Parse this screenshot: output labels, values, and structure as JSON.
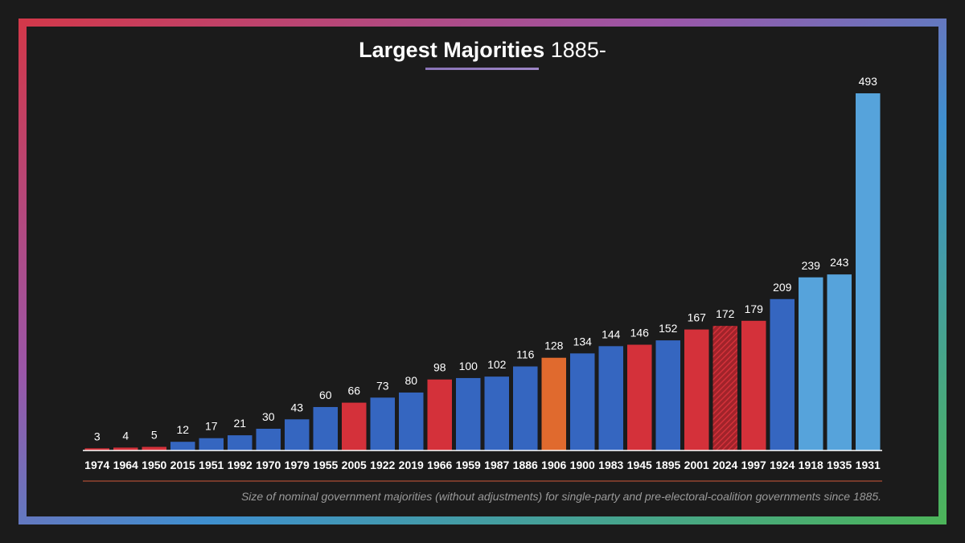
{
  "title": {
    "bold": "Largest Majorities",
    "rest": "1885-"
  },
  "footnote": "Size of nominal government majorities (without adjustments) for single-party and pre-electoral-coalition governments since 1885.",
  "colors": {
    "background": "#1b1b1b",
    "conservative": "#3566c0",
    "labour": "#d4313a",
    "liberal": "#e06a2e",
    "coalition": "#56a3db",
    "text": "#ffffff",
    "baseline": "#ffffff",
    "footnote_rule": "#d05a38"
  },
  "chart_data": {
    "type": "bar",
    "title": "Largest Majorities 1885-",
    "xlabel": "",
    "ylabel": "",
    "ylim": [
      0,
      500
    ],
    "categories": [
      "1974",
      "1964",
      "1950",
      "2015",
      "1951",
      "1992",
      "1970",
      "1979",
      "1955",
      "2005",
      "1922",
      "2019",
      "1966",
      "1959",
      "1987",
      "1886",
      "1906",
      "1900",
      "1983",
      "1945",
      "1895",
      "2001",
      "2024",
      "1997",
      "1924",
      "1918",
      "1935",
      "1931"
    ],
    "values": [
      3,
      4,
      5,
      12,
      17,
      21,
      30,
      43,
      60,
      66,
      73,
      80,
      98,
      100,
      102,
      116,
      128,
      134,
      144,
      146,
      152,
      167,
      172,
      179,
      209,
      239,
      243,
      493
    ],
    "bar_party": [
      "labour",
      "labour",
      "labour",
      "conservative",
      "conservative",
      "conservative",
      "conservative",
      "conservative",
      "conservative",
      "labour",
      "conservative",
      "conservative",
      "labour",
      "conservative",
      "conservative",
      "conservative",
      "liberal",
      "conservative",
      "conservative",
      "labour",
      "conservative",
      "labour",
      "labour",
      "labour",
      "conservative",
      "coalition",
      "coalition",
      "coalition"
    ],
    "hatched": [
      false,
      false,
      false,
      false,
      false,
      false,
      false,
      false,
      false,
      false,
      false,
      false,
      false,
      false,
      false,
      false,
      false,
      false,
      false,
      false,
      false,
      false,
      true,
      false,
      false,
      false,
      false,
      false
    ],
    "data_labels": true,
    "grid": false,
    "legend": "none"
  }
}
